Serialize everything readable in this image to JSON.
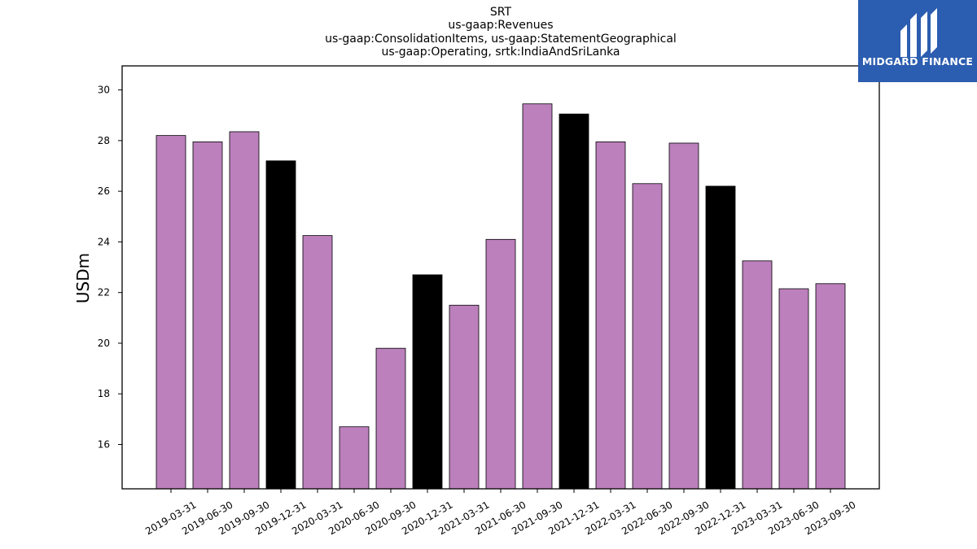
{
  "chart_data": {
    "type": "bar",
    "title_lines": [
      "SRT",
      "us-gaap:Revenues",
      "us-gaap:ConsolidationItems, us-gaap:StatementGeographical",
      "us-gaap:Operating, srtk:IndiaAndSriLanka"
    ],
    "xlabel": "",
    "ylabel": "USDm",
    "ylim": [
      14.25,
      30.95
    ],
    "yticks": [
      16,
      18,
      20,
      22,
      24,
      26,
      28,
      30
    ],
    "grid": false,
    "categories": [
      "2019-03-31",
      "2019-06-30",
      "2019-09-30",
      "2019-12-31",
      "2020-03-31",
      "2020-06-30",
      "2020-09-30",
      "2020-12-31",
      "2021-03-31",
      "2021-06-30",
      "2021-09-30",
      "2021-12-31",
      "2022-03-31",
      "2022-06-30",
      "2022-09-30",
      "2022-12-31",
      "2023-03-31",
      "2023-06-30",
      "2023-09-30"
    ],
    "values": [
      28.2,
      27.95,
      28.35,
      27.2,
      24.25,
      16.7,
      19.8,
      22.7,
      21.5,
      24.1,
      29.45,
      29.05,
      27.95,
      26.3,
      27.9,
      26.2,
      23.25,
      22.15,
      22.35
    ],
    "bar_colors": [
      "#bc80bd",
      "#bc80bd",
      "#bc80bd",
      "#000000",
      "#bc80bd",
      "#bc80bd",
      "#bc80bd",
      "#000000",
      "#bc80bd",
      "#bc80bd",
      "#bc80bd",
      "#000000",
      "#bc80bd",
      "#bc80bd",
      "#bc80bd",
      "#000000",
      "#bc80bd",
      "#bc80bd",
      "#bc80bd"
    ]
  },
  "logo": {
    "text": "MIDGARD FINANCE",
    "background": "#2b5db0",
    "icon": "midgard-logo-icon"
  }
}
